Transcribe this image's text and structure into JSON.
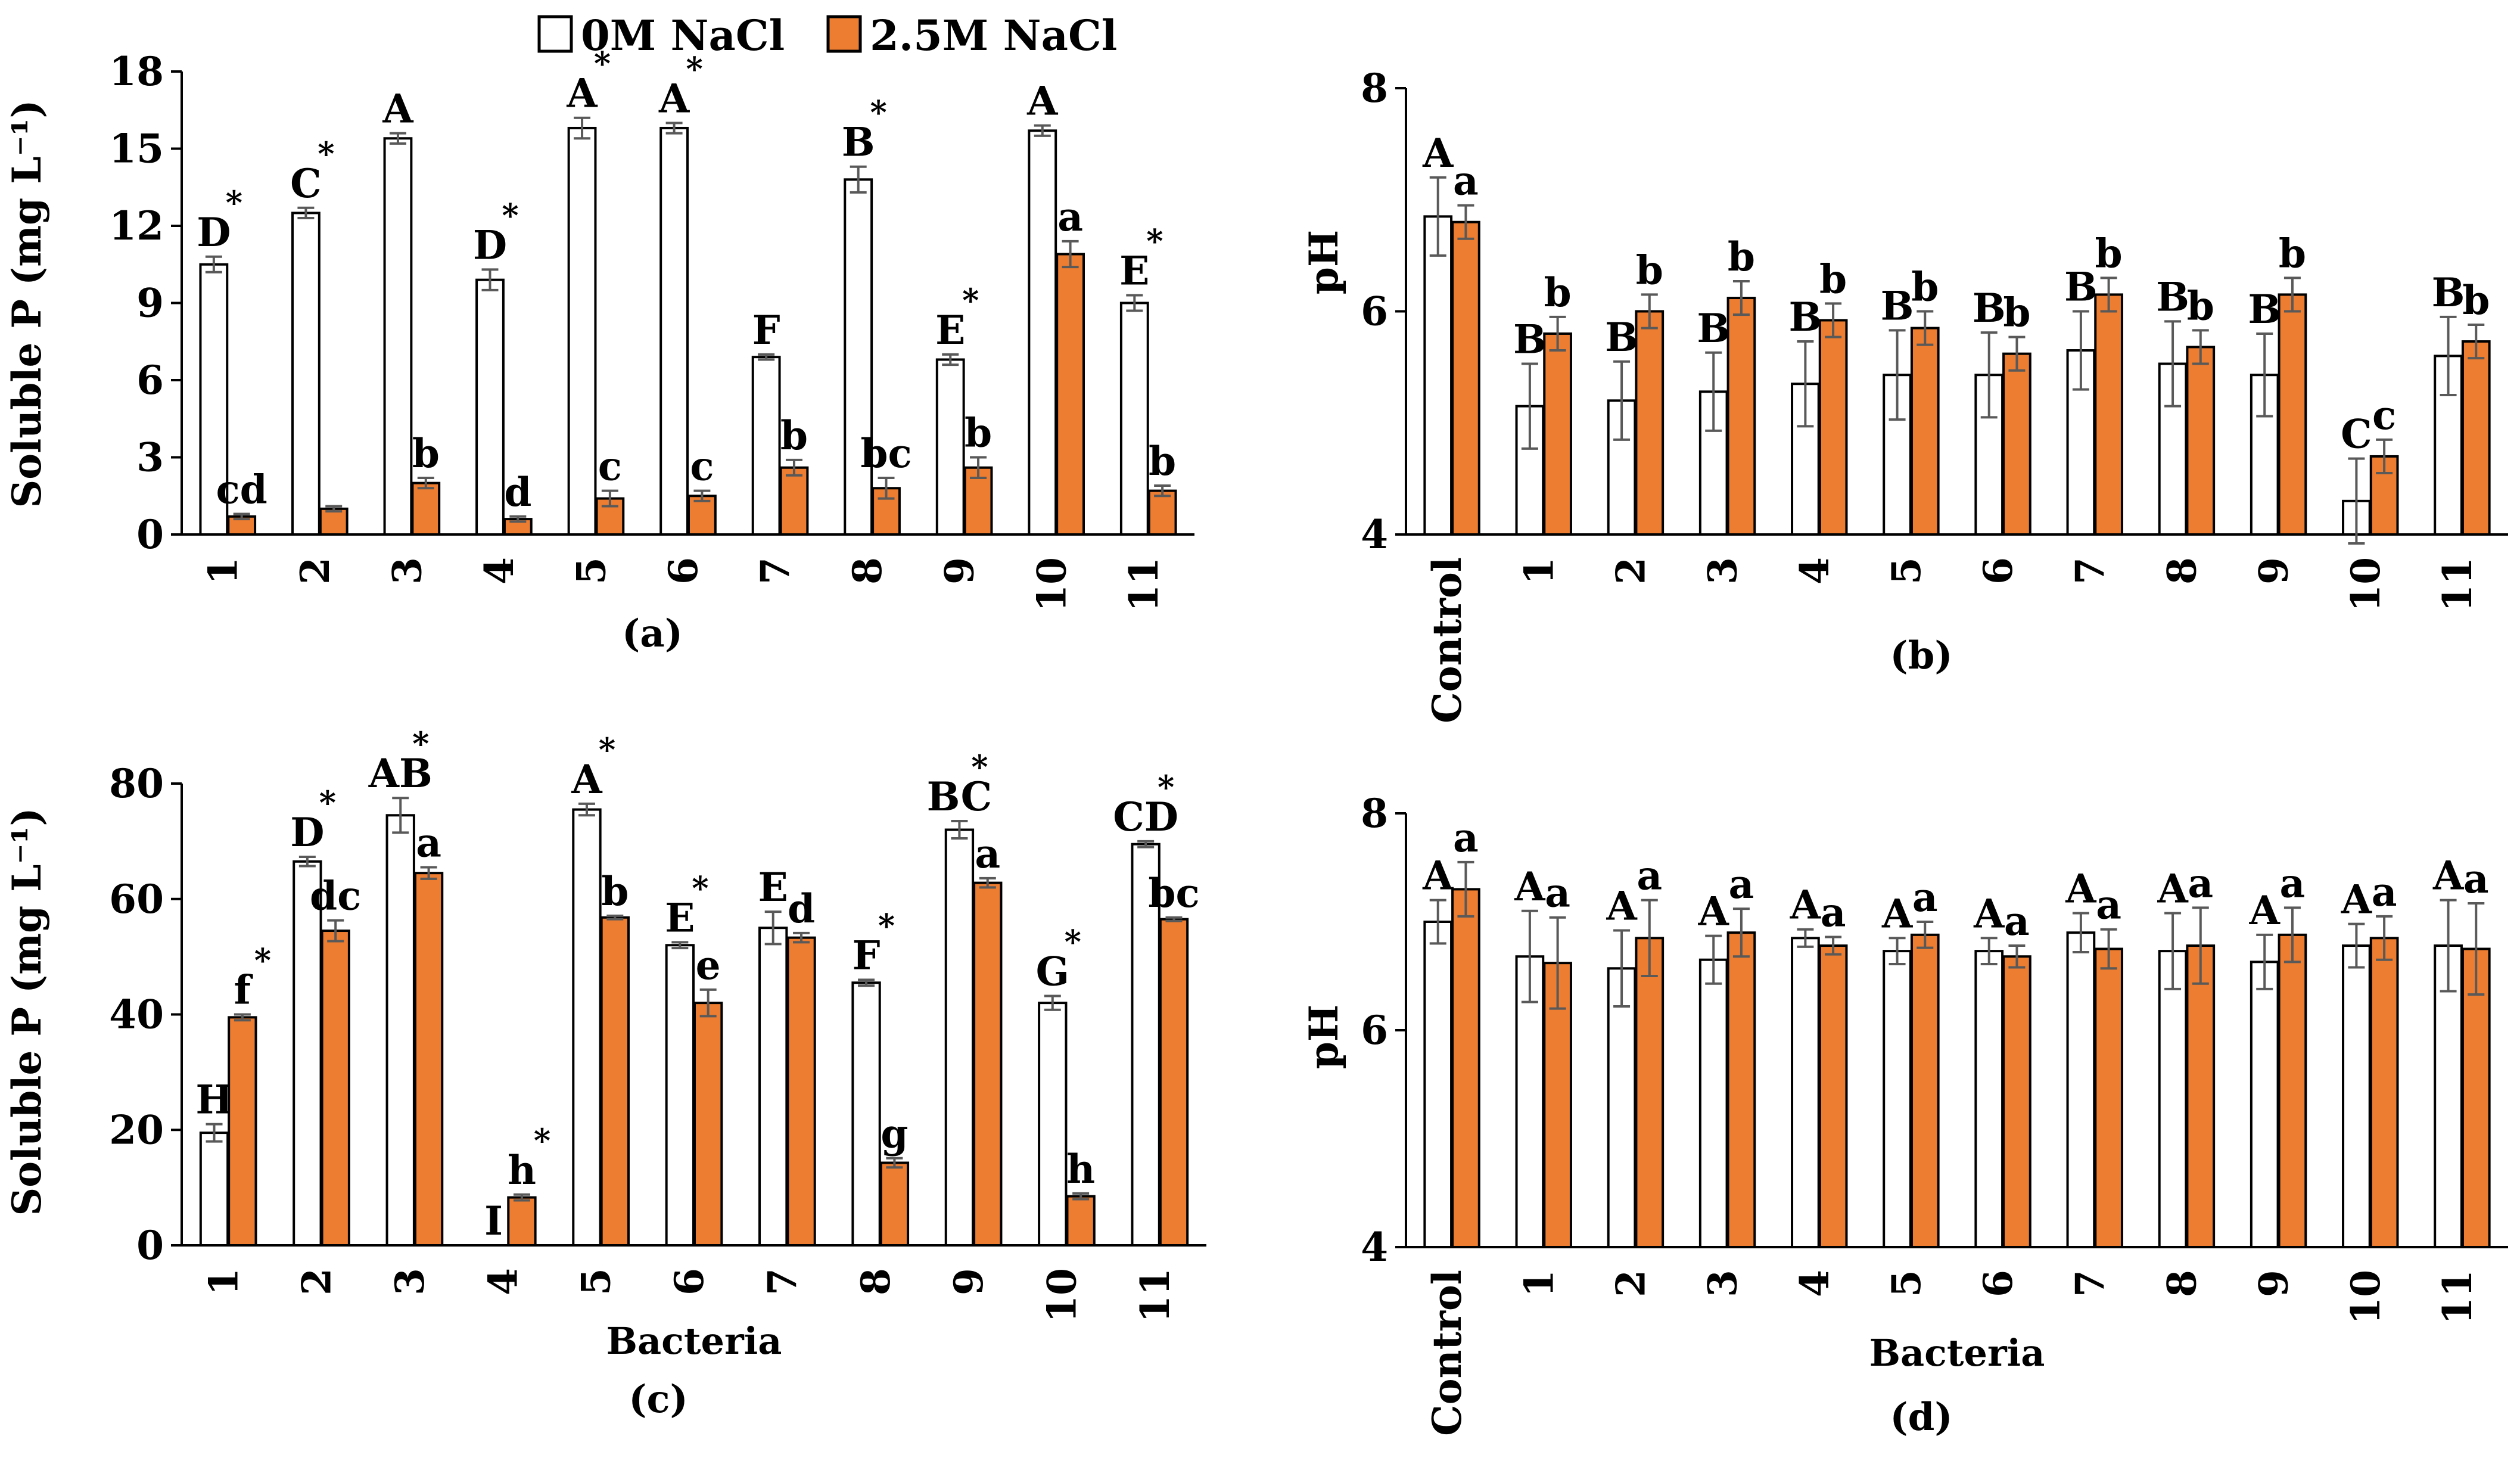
{
  "legend": {
    "items": [
      {
        "label": "0M NaCl",
        "color": "#ffffff"
      },
      {
        "label": "2.5M NaCl",
        "color": "#ed7d31"
      }
    ]
  },
  "colors": {
    "control_bar": "#ffffff",
    "salt_bar": "#ed7d31",
    "bar_stroke": "#000000",
    "error_bar": "#595959"
  },
  "chart_data": [
    {
      "type": "bar",
      "panel_label": "(a)",
      "categories": [
        "1",
        "2",
        "3",
        "4",
        "5",
        "6",
        "7",
        "8",
        "9",
        "10",
        "11"
      ],
      "xlabel": "",
      "ylabel": "Soluble P (mg L⁻¹)",
      "ylim": [
        0,
        18
      ],
      "yticks": [
        0,
        3,
        6,
        9,
        12,
        15,
        18
      ],
      "series": [
        {
          "name": "0M NaCl",
          "values": [
            10.5,
            12.5,
            15.4,
            9.9,
            15.8,
            15.8,
            6.9,
            13.8,
            6.8,
            15.7,
            9.0
          ],
          "errors": [
            0.3,
            0.2,
            0.2,
            0.4,
            0.4,
            0.2,
            0.1,
            0.5,
            0.2,
            0.2,
            0.3
          ],
          "labels": [
            "D",
            "C",
            "A",
            "D",
            "A",
            "A",
            "F",
            "B",
            "E",
            "A",
            "E"
          ],
          "stars": [
            true,
            true,
            false,
            true,
            true,
            true,
            false,
            true,
            true,
            false,
            true
          ]
        },
        {
          "name": "2.5M NaCl",
          "values": [
            0.7,
            1.0,
            2.0,
            0.6,
            1.4,
            1.5,
            2.6,
            1.8,
            2.6,
            10.9,
            1.7
          ],
          "errors": [
            0.1,
            0.1,
            0.2,
            0.1,
            0.3,
            0.2,
            0.3,
            0.4,
            0.4,
            0.5,
            0.2
          ],
          "labels": [
            "cd",
            "",
            "b",
            "d",
            "c",
            "c",
            "b",
            "bc",
            "b",
            "a",
            "b"
          ]
        }
      ]
    },
    {
      "type": "bar",
      "panel_label": "(b)",
      "categories": [
        "Control",
        "1",
        "2",
        "3",
        "4",
        "5",
        "6",
        "7",
        "8",
        "9",
        "10",
        "11"
      ],
      "xlabel": "",
      "ylabel": "pH",
      "ylim": [
        4,
        8
      ],
      "yticks": [
        4,
        6,
        8
      ],
      "series": [
        {
          "name": "0M NaCl",
          "values": [
            6.85,
            5.15,
            5.2,
            5.28,
            5.35,
            5.43,
            5.43,
            5.65,
            5.53,
            5.43,
            4.3,
            5.6
          ],
          "errors": [
            0.35,
            0.38,
            0.35,
            0.35,
            0.38,
            0.4,
            0.38,
            0.35,
            0.38,
            0.37,
            0.38,
            0.35
          ],
          "labels": [
            "A",
            "B",
            "B",
            "B",
            "B",
            "B",
            "B",
            "B",
            "B",
            "B",
            "C",
            "B"
          ]
        },
        {
          "name": "2.5M NaCl",
          "values": [
            6.8,
            5.8,
            6.0,
            6.12,
            5.92,
            5.85,
            5.62,
            6.15,
            5.68,
            6.15,
            4.7,
            5.73
          ],
          "errors": [
            0.15,
            0.15,
            0.15,
            0.15,
            0.15,
            0.15,
            0.15,
            0.15,
            0.15,
            0.15,
            0.15,
            0.15
          ],
          "labels": [
            "a",
            "b",
            "b",
            "b",
            "b",
            "b",
            "b",
            "b",
            "b",
            "b",
            "c",
            "b"
          ]
        }
      ]
    },
    {
      "type": "bar",
      "panel_label": "(c)",
      "categories": [
        "1",
        "2",
        "3",
        "4",
        "5",
        "6",
        "7",
        "8",
        "9",
        "10",
        "11"
      ],
      "xlabel": "Bacteria",
      "ylabel": "Soluble P (mg L⁻¹)",
      "ylim": [
        0,
        80
      ],
      "yticks": [
        0,
        20,
        40,
        60,
        80
      ],
      "series": [
        {
          "name": "0M NaCl",
          "values": [
            19.5,
            66.5,
            74.5,
            0,
            75.5,
            52.0,
            55.0,
            45.5,
            72.0,
            42.0,
            69.5
          ],
          "errors": [
            1.5,
            0.8,
            3.0,
            0,
            1.0,
            0.5,
            2.8,
            0.5,
            1.5,
            1.2,
            0.5
          ],
          "labels": [
            "H",
            "D",
            "AB",
            "I",
            "A",
            "E",
            "E",
            "F",
            "BC",
            "G",
            "CD"
          ],
          "stars": [
            false,
            true,
            true,
            false,
            true,
            true,
            false,
            true,
            true,
            true,
            true
          ]
        },
        {
          "name": "2.5M NaCl",
          "values": [
            39.5,
            54.5,
            64.5,
            8.3,
            56.8,
            42.0,
            53.3,
            14.3,
            62.8,
            8.5,
            56.5
          ],
          "errors": [
            0.5,
            1.8,
            1.0,
            0.5,
            0.3,
            2.3,
            0.8,
            0.8,
            0.8,
            0.5,
            0.3
          ],
          "labels": [
            "f",
            "dc",
            "a",
            "h",
            "b",
            "e",
            "d",
            "g",
            "a",
            "h",
            "bc"
          ],
          "stars": [
            true,
            false,
            false,
            true,
            false,
            false,
            false,
            false,
            false,
            false,
            false
          ]
        }
      ]
    },
    {
      "type": "bar",
      "panel_label": "(d)",
      "categories": [
        "Control",
        "1",
        "2",
        "3",
        "4",
        "5",
        "6",
        "7",
        "8",
        "9",
        "10",
        "11"
      ],
      "xlabel": "Bacteria",
      "ylabel": "pH",
      "ylim": [
        4,
        8
      ],
      "yticks": [
        4,
        6,
        8
      ],
      "series": [
        {
          "name": "0M NaCl",
          "values": [
            7.0,
            6.68,
            6.57,
            6.65,
            6.85,
            6.73,
            6.73,
            6.9,
            6.73,
            6.63,
            6.78,
            6.78
          ],
          "errors": [
            0.2,
            0.42,
            0.35,
            0.22,
            0.08,
            0.12,
            0.12,
            0.18,
            0.35,
            0.25,
            0.2,
            0.42
          ],
          "labels": [
            "A",
            "A",
            "A",
            "A",
            "A",
            "A",
            "A",
            "A",
            "A",
            "A",
            "A",
            "A"
          ]
        },
        {
          "name": "2.5M NaCl",
          "values": [
            7.3,
            6.62,
            6.85,
            6.9,
            6.78,
            6.88,
            6.68,
            6.75,
            6.78,
            6.88,
            6.85,
            6.75
          ],
          "errors": [
            0.25,
            0.42,
            0.35,
            0.22,
            0.08,
            0.12,
            0.1,
            0.18,
            0.35,
            0.25,
            0.2,
            0.42
          ],
          "labels": [
            "a",
            "a",
            "a",
            "a",
            "a",
            "a",
            "a",
            "a",
            "a",
            "a",
            "a",
            "a"
          ]
        }
      ]
    }
  ]
}
